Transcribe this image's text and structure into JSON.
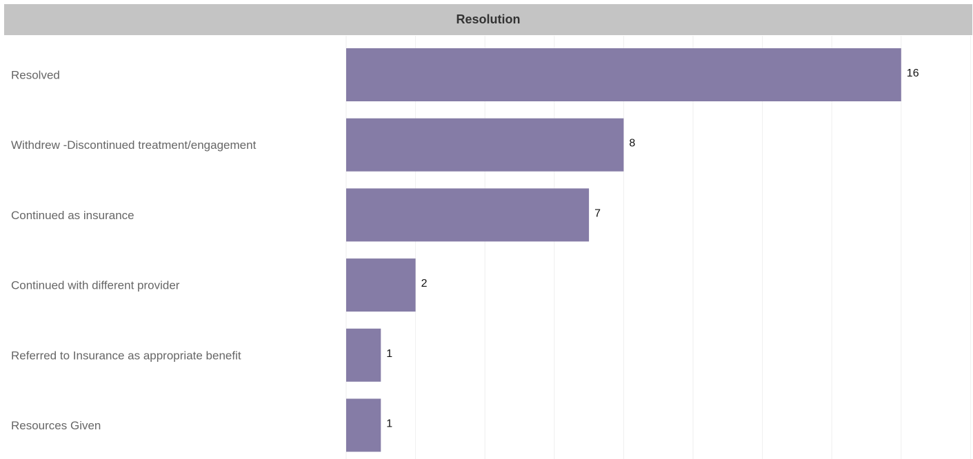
{
  "header": {
    "title": "Resolution"
  },
  "chart_data": {
    "type": "bar",
    "orientation": "horizontal",
    "title": "Resolution",
    "categories": [
      "Resolved",
      "Withdrew -Discontinued treatment/engagement",
      "Continued as insurance",
      "Continued with different provider",
      "Referred to Insurance as appropriate benefit",
      "Resources Given"
    ],
    "values": [
      16,
      8,
      7,
      2,
      1,
      1
    ],
    "xlabel": "",
    "ylabel": "",
    "xlim": [
      0,
      18
    ],
    "grid": true,
    "data_labels": true,
    "bar_color": "#857ca6",
    "grid_color": "#eeeeee"
  }
}
